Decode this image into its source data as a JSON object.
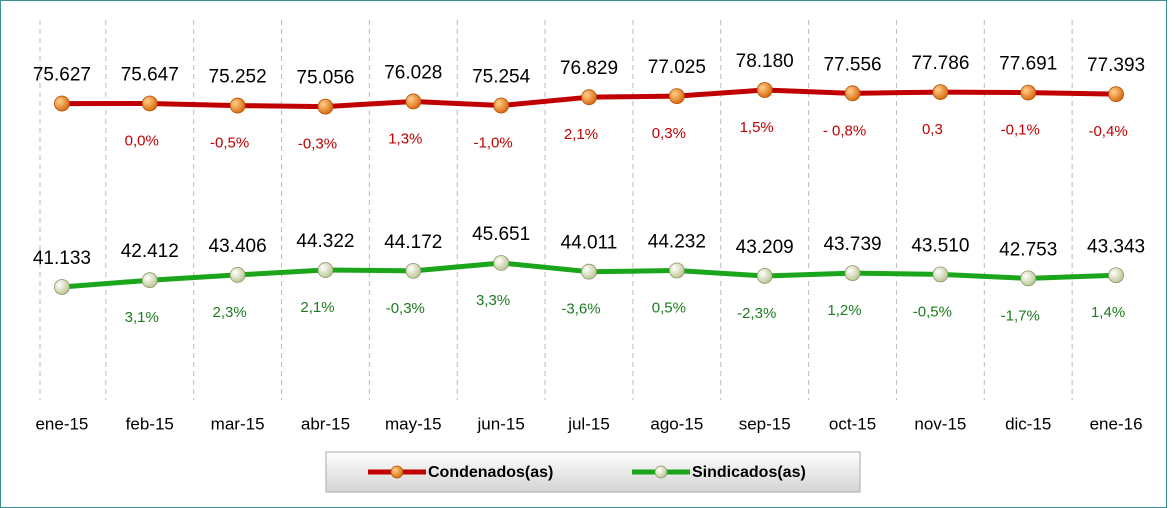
{
  "chart_data": {
    "type": "line",
    "categories": [
      "ene-15",
      "feb-15",
      "mar-15",
      "abr-15",
      "may-15",
      "jun-15",
      "jul-15",
      "ago-15",
      "sep-15",
      "oct-15",
      "nov-15",
      "dic-15",
      "ene-16"
    ],
    "series": [
      {
        "name": "Condenados(as)",
        "color": "#c00000",
        "marker_color": "#e87a10",
        "label_color": "#c00000",
        "values": [
          75627,
          75647,
          75252,
          75056,
          76028,
          75254,
          76829,
          77025,
          78180,
          77556,
          77786,
          77691,
          77393
        ],
        "value_labels": [
          "75.627",
          "75.647",
          "75.252",
          "75.056",
          "76.028",
          "75.254",
          "76.829",
          "77.025",
          "78.180",
          "77.556",
          "77.786",
          "77.691",
          "77.393"
        ],
        "change_labels": [
          "0,0%",
          "-0,5%",
          "-0,3%",
          "1,3%",
          "-1,0%",
          "2,1%",
          "0,3%",
          "1,5%",
          "- 0,8%",
          "0,3",
          "-0,1%",
          "-0,4%"
        ]
      },
      {
        "name": "Sindicados(as)",
        "color": "#1aa51a",
        "marker_color": "#e6ecc4",
        "label_color": "#1e7b1e",
        "values": [
          41133,
          42412,
          43406,
          44322,
          44172,
          45651,
          44011,
          44232,
          43209,
          43739,
          43510,
          42753,
          43343
        ],
        "value_labels": [
          "41.133",
          "42.412",
          "43.406",
          "44.322",
          "44.172",
          "45.651",
          "44.011",
          "44.232",
          "43.209",
          "43.739",
          "43.510",
          "42.753",
          "43.343"
        ],
        "change_labels": [
          "3,1%",
          "2,3%",
          "2,1%",
          "-0,3%",
          "3,3%",
          "-3,6%",
          "0,5%",
          "-2,3%",
          "1,2%",
          "-0,5%",
          "-1,7%",
          "1,4%"
        ]
      }
    ]
  }
}
